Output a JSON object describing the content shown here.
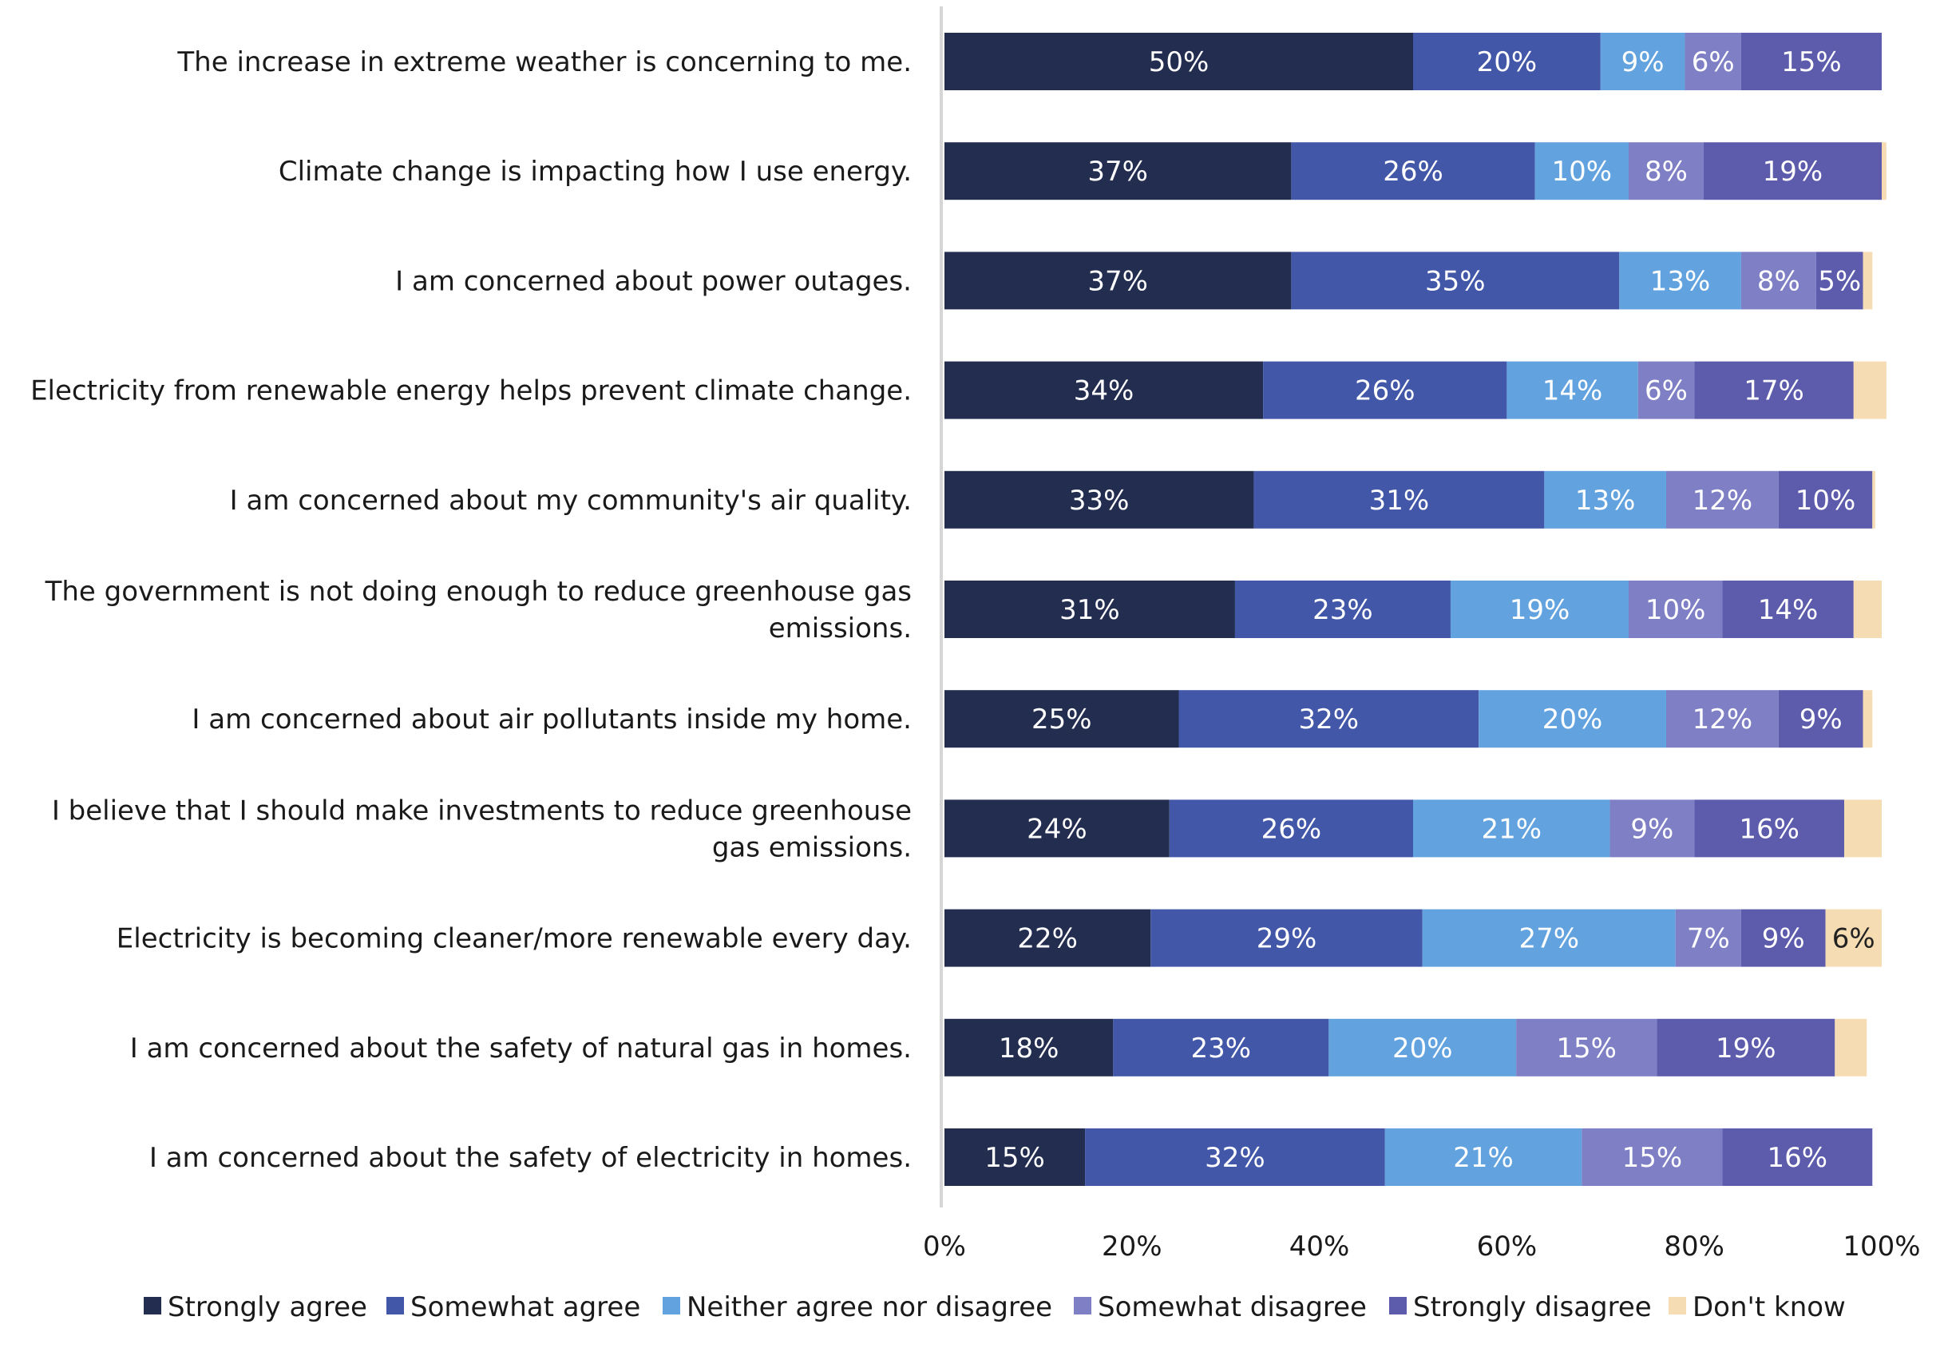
{
  "chart_data": {
    "type": "bar",
    "orientation": "horizontal",
    "stacked": true,
    "title": "",
    "xlabel": "",
    "ylabel": "",
    "xlim": [
      0,
      100
    ],
    "x_ticks": [
      "0%",
      "20%",
      "40%",
      "60%",
      "80%",
      "100%"
    ],
    "grid": false,
    "legend_position": "bottom",
    "categories": [
      "The increase in extreme weather is concerning to me.",
      "Climate change is impacting how I use energy.",
      "I am concerned about power outages.",
      "Electricity from renewable energy helps prevent climate change.",
      "I am concerned about my community's air quality.",
      "The government is not doing enough to reduce greenhouse gas emissions.",
      "I am concerned about air pollutants inside my home.",
      "I believe that I should make investments to reduce greenhouse gas emissions.",
      "Electricity is becoming cleaner/more renewable every day.",
      "I am concerned about the safety of natural gas in homes.",
      "I am concerned about the safety of electricity in homes."
    ],
    "category_lines": [
      [
        "The increase in extreme weather is concerning to me."
      ],
      [
        "Climate change is impacting how I use energy."
      ],
      [
        "I am concerned about power outages."
      ],
      [
        "Electricity from renewable energy helps prevent climate change."
      ],
      [
        "I am concerned about my community's air quality."
      ],
      [
        "The government is not doing enough to reduce greenhouse gas",
        "emissions."
      ],
      [
        "I am concerned about air pollutants inside my home."
      ],
      [
        "I believe that I should make investments to reduce greenhouse",
        "gas emissions."
      ],
      [
        "Electricity is becoming cleaner/more renewable every day."
      ],
      [
        "I am concerned about the safety of natural gas in homes."
      ],
      [
        "I am concerned about the safety of electricity in homes."
      ]
    ],
    "series": [
      {
        "name": "Strongly agree",
        "color": "#232d4f",
        "values": [
          50,
          37,
          37,
          34,
          33,
          31,
          25,
          24,
          22,
          18,
          15
        ],
        "labels": [
          "50%",
          "37%",
          "37%",
          "34%",
          "33%",
          "31%",
          "25%",
          "24%",
          "22%",
          "18%",
          "15%"
        ]
      },
      {
        "name": "Somewhat agree",
        "color": "#4257a8",
        "values": [
          20,
          26,
          35,
          26,
          31,
          23,
          32,
          26,
          29,
          23,
          32
        ],
        "labels": [
          "20%",
          "26%",
          "35%",
          "26%",
          "31%",
          "23%",
          "32%",
          "26%",
          "29%",
          "23%",
          "32%"
        ]
      },
      {
        "name": "Neither agree nor disagree",
        "color": "#62a3df",
        "values": [
          9,
          10,
          13,
          14,
          13,
          19,
          20,
          21,
          27,
          20,
          21
        ],
        "labels": [
          "9%",
          "10%",
          "13%",
          "14%",
          "13%",
          "19%",
          "20%",
          "21%",
          "27%",
          "20%",
          "21%"
        ]
      },
      {
        "name": "Somewhat disagree",
        "color": "#7e7fc4",
        "values": [
          6,
          8,
          8,
          6,
          12,
          10,
          12,
          9,
          7,
          15,
          15
        ],
        "labels": [
          "6%",
          "8%",
          "8%",
          "6%",
          "12%",
          "10%",
          "12%",
          "9%",
          "7%",
          "15%",
          "15%"
        ]
      },
      {
        "name": "Strongly disagree",
        "color": "#5c5bac",
        "values": [
          15,
          19,
          5,
          17,
          10,
          14,
          9,
          16,
          9,
          19,
          16
        ],
        "labels": [
          "15%",
          "19%",
          "5%",
          "17%",
          "10%",
          "14%",
          "9%",
          "16%",
          "9%",
          "19%",
          "16%"
        ]
      },
      {
        "name": "Don't know",
        "color": "#f6dcb3",
        "values": [
          0,
          0.5,
          1,
          3.5,
          0.3,
          3,
          1,
          4,
          6,
          3.4,
          0
        ],
        "labels": [
          "",
          "",
          "",
          "",
          "",
          "",
          "",
          "",
          "6%",
          "",
          ""
        ]
      }
    ]
  }
}
